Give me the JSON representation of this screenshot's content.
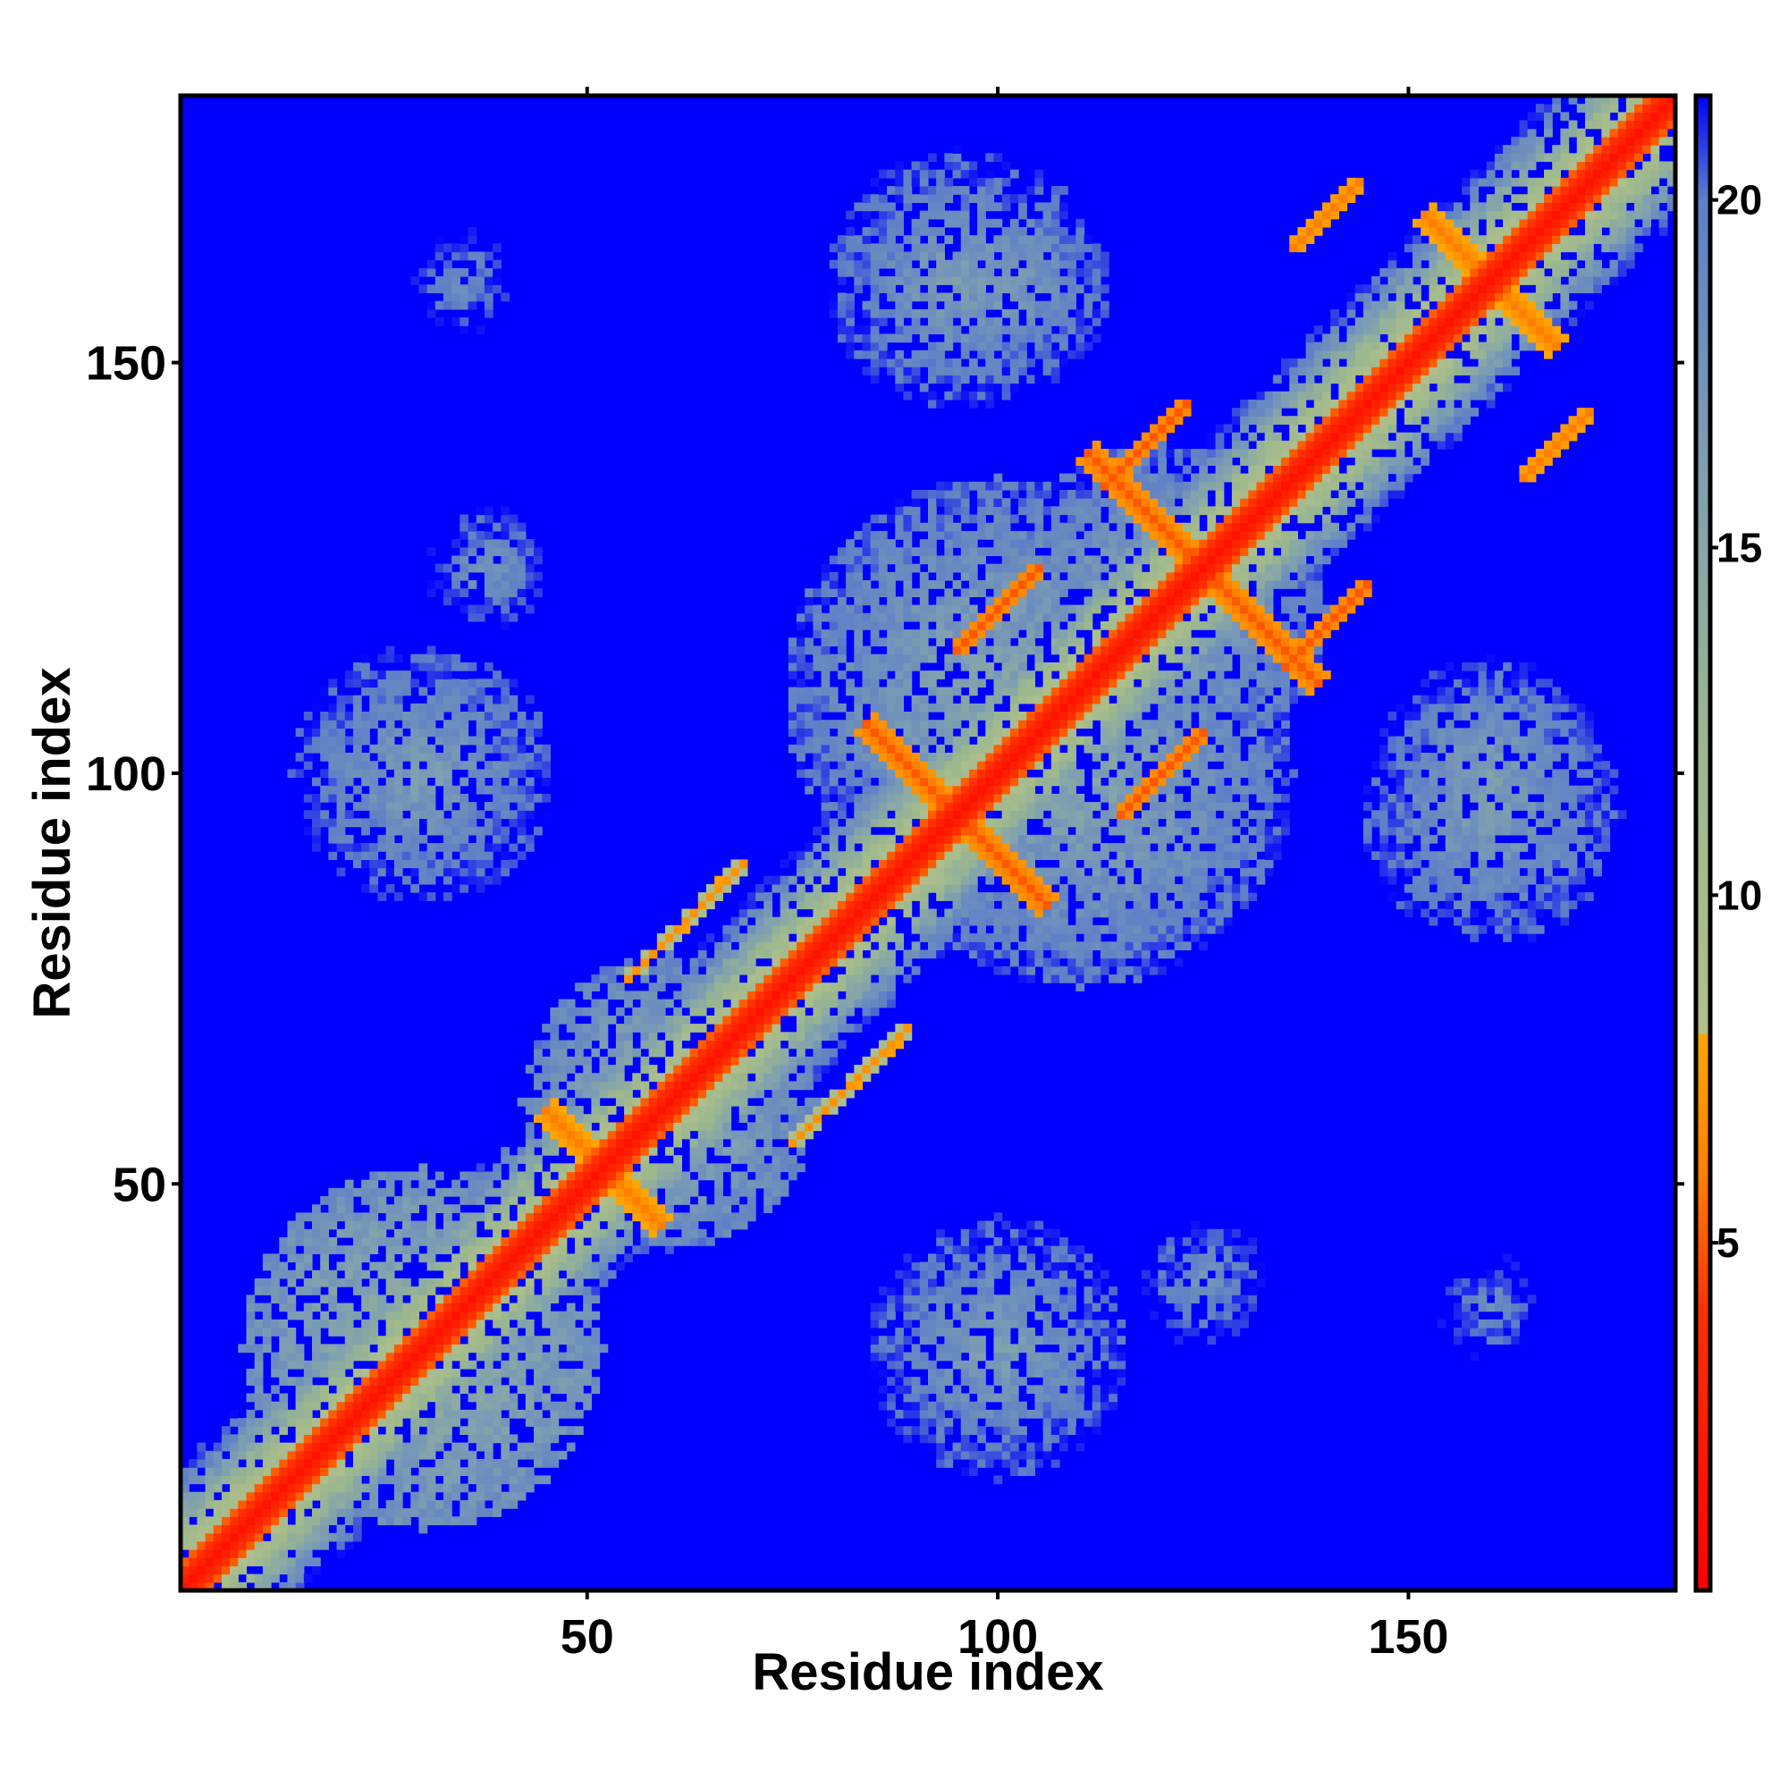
{
  "chart_data": {
    "type": "heatmap",
    "title": "",
    "xlabel": "Residue index",
    "ylabel": "Residue index",
    "n_residues": 182,
    "xlim": [
      1,
      182
    ],
    "ylim": [
      1,
      182
    ],
    "x_ticks": [
      50,
      100,
      150
    ],
    "y_ticks": [
      50,
      100,
      150
    ],
    "colorbar": {
      "range": [
        0,
        21.5
      ],
      "ticks": [
        5,
        10,
        15,
        20
      ],
      "stops": [
        {
          "value": 0,
          "color": "#ff0000"
        },
        {
          "value": 4,
          "color": "#ff3000"
        },
        {
          "value": 6,
          "color": "#ff8000"
        },
        {
          "value": 8,
          "color": "#ffa500"
        },
        {
          "value": 8.01,
          "color": "#b2c08a"
        },
        {
          "value": 12,
          "color": "#9db88e"
        },
        {
          "value": 16,
          "color": "#7fa0b0"
        },
        {
          "value": 20,
          "color": "#5f7fc8"
        },
        {
          "value": 21.5,
          "color": "#0000ff"
        }
      ]
    },
    "background_color": "#0000ff",
    "diagonal_color": "#ff0000",
    "contact_features": [
      {
        "kind": "band",
        "from": [
          1,
          1
        ],
        "to": [
          182,
          182
        ],
        "half_width": 3,
        "value": 1.5
      },
      {
        "kind": "antiparallel",
        "center": [
          52,
          52
        ],
        "length": 10,
        "value": 6
      },
      {
        "kind": "antiparallel",
        "center": [
          95,
          95
        ],
        "length": 16,
        "value": 5
      },
      {
        "kind": "antiparallel",
        "center": [
          125,
          125
        ],
        "length": 20,
        "value": 5
      },
      {
        "kind": "antiparallel",
        "center": [
          160,
          160
        ],
        "length": 12,
        "value": 6
      },
      {
        "kind": "parallel",
        "center": [
          100,
          120
        ],
        "length": 10,
        "value": 5
      },
      {
        "kind": "parallel",
        "center": [
          118,
          140
        ],
        "length": 10,
        "value": 5
      },
      {
        "kind": "parallel",
        "center": [
          62,
          82
        ],
        "length": 14,
        "value": 7
      },
      {
        "kind": "parallel",
        "center": [
          140,
          168
        ],
        "length": 8,
        "value": 6
      },
      {
        "kind": "patch",
        "center": [
          30,
          30
        ],
        "radius": 22,
        "value": 13
      },
      {
        "kind": "patch",
        "center": [
          60,
          60
        ],
        "radius": 18,
        "value": 14
      },
      {
        "kind": "patch",
        "center": [
          100,
          110
        ],
        "radius": 26,
        "value": 15
      },
      {
        "kind": "patch",
        "center": [
          120,
          120
        ],
        "radius": 20,
        "value": 15
      },
      {
        "kind": "patch",
        "center": [
          160,
          100
        ],
        "radius": 14,
        "value": 16
      },
      {
        "kind": "patch",
        "center": [
          95,
          160
        ],
        "radius": 16,
        "value": 16
      },
      {
        "kind": "patch",
        "center": [
          30,
          100
        ],
        "radius": 16,
        "value": 16
      },
      {
        "kind": "patch",
        "center": [
          125,
          38
        ],
        "radius": 8,
        "value": 17
      },
      {
        "kind": "patch",
        "center": [
          160,
          35
        ],
        "radius": 8,
        "value": 18
      }
    ]
  }
}
